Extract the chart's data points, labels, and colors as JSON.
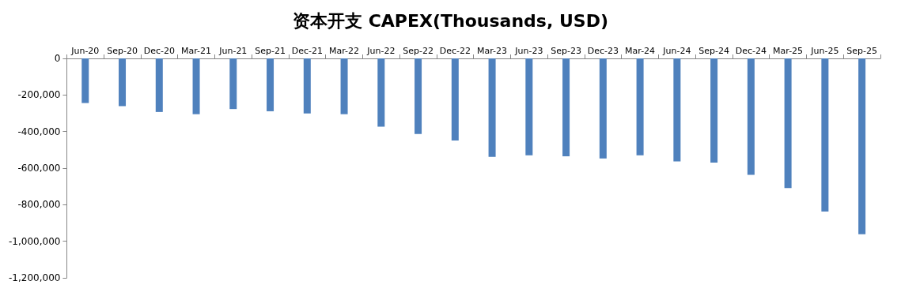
{
  "chart_data": {
    "type": "bar",
    "title": "资本开支 CAPEX(Thousands, USD)",
    "categories": [
      "Jun-20",
      "Sep-20",
      "Dec-20",
      "Mar-21",
      "Jun-21",
      "Sep-21",
      "Dec-21",
      "Mar-22",
      "Jun-22",
      "Sep-22",
      "Dec-22",
      "Mar-23",
      "Jun-23",
      "Sep-23",
      "Dec-23",
      "Mar-24",
      "Jun-24",
      "Sep-24",
      "Dec-24",
      "Mar-25",
      "Jun-25",
      "Sep-25"
    ],
    "values": [
      -244000,
      -261000,
      -293000,
      -305000,
      -277000,
      -289000,
      -301000,
      -305000,
      -373000,
      -413000,
      -449000,
      -538000,
      -530000,
      -535000,
      -547000,
      -530000,
      -563000,
      -570000,
      -637000,
      -709000,
      -837000,
      -961000
    ],
    "color": "#4f81bd",
    "ylim": [
      -1200000,
      0
    ],
    "yticks": [
      {
        "value": -1200000,
        "label": "-1,200,000"
      },
      {
        "value": -1000000,
        "label": "-1,000,000"
      },
      {
        "value": -800000,
        "label": "-800,000"
      },
      {
        "value": -600000,
        "label": "-600,000"
      },
      {
        "value": -400000,
        "label": "-400,000"
      },
      {
        "value": -200000,
        "label": "-200,000"
      },
      0
    ],
    "grid": false
  }
}
